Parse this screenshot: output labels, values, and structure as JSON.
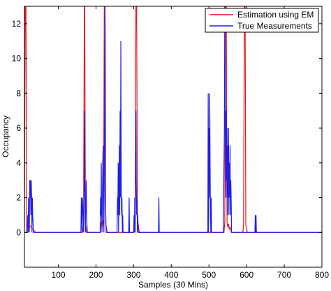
{
  "chart_data": {
    "type": "line",
    "title": "",
    "xlabel": "Samples (30 Mins)",
    "ylabel": "Occupancy",
    "xlim": [
      10,
      800
    ],
    "ylim": [
      -2,
      13
    ],
    "xticks": [
      100,
      200,
      300,
      400,
      500,
      600,
      700,
      800
    ],
    "yticks": [
      0,
      2,
      4,
      6,
      8,
      10,
      12
    ],
    "grid": false,
    "legend": "top-right",
    "series": [
      {
        "name": "Estimation using EM",
        "color": "#e8151b",
        "x": [
          10,
          12,
          14,
          16,
          19,
          24,
          40,
          100,
          164,
          167,
          169,
          170,
          172,
          175,
          180,
          212,
          214,
          216,
          218,
          220,
          222,
          224,
          226,
          230,
          300,
          304,
          306,
          308,
          310,
          312,
          315,
          320,
          360,
          540,
          542,
          544,
          546,
          548,
          550,
          552,
          554,
          556,
          560,
          590,
          592,
          594,
          596,
          598,
          602,
          800
        ],
        "y": [
          0,
          13,
          13,
          0,
          0,
          0.4,
          0,
          0,
          0,
          0.5,
          13,
          13,
          0.5,
          0,
          0,
          0,
          0.6,
          0.4,
          0.7,
          0.3,
          13,
          13,
          0.5,
          0,
          0,
          0.4,
          13,
          13,
          0.8,
          0.5,
          0,
          0,
          0,
          0,
          0.6,
          13,
          13,
          0.6,
          0.3,
          0.5,
          0.2,
          0.3,
          0,
          0,
          0.5,
          13,
          13,
          0.4,
          0,
          0
        ]
      },
      {
        "name": "True Measurements",
        "color": "#1f1fe8",
        "x": [
          10,
          17,
          19,
          20,
          21,
          22,
          23,
          24,
          25,
          26,
          27,
          28,
          29,
          30,
          31,
          32,
          34,
          160,
          161,
          163,
          164,
          166,
          167,
          168,
          169,
          170,
          171,
          172,
          173,
          174,
          175,
          177,
          210,
          211,
          212,
          213,
          214,
          215,
          216,
          217,
          218,
          219,
          220,
          221,
          222,
          223,
          224,
          225,
          226,
          227,
          229,
          256,
          257,
          258,
          259,
          260,
          261,
          262,
          263,
          264,
          265,
          266,
          267,
          268,
          269,
          270,
          271,
          272,
          274,
          287,
          288,
          289,
          290,
          300,
          301,
          302,
          303,
          304,
          305,
          306,
          307,
          308,
          309,
          310,
          311,
          312,
          314,
          366,
          367,
          368,
          369,
          497,
          498,
          499,
          500,
          501,
          502,
          503,
          504,
          505,
          506,
          507,
          509,
          538,
          539,
          540,
          541,
          542,
          543,
          544,
          545,
          546,
          547,
          548,
          549,
          550,
          551,
          552,
          553,
          554,
          555,
          556,
          557,
          558,
          559,
          560,
          562,
          622,
          623,
          624,
          625,
          626,
          627,
          629,
          800
        ],
        "y": [
          0,
          0,
          1,
          0,
          2,
          1,
          0,
          3,
          2,
          3,
          1,
          3,
          2,
          0,
          2,
          1,
          0,
          0,
          2,
          0,
          2,
          1,
          0,
          1,
          7,
          3,
          2,
          0,
          2,
          3,
          1,
          0,
          0,
          0,
          2,
          1,
          4,
          1,
          0,
          2,
          4,
          5,
          1,
          0,
          3,
          8,
          13,
          2,
          1,
          0,
          0,
          0,
          2,
          1,
          4,
          0,
          3,
          5,
          1,
          7,
          2,
          11,
          3,
          1,
          2,
          0,
          1,
          0,
          0,
          0,
          2,
          0,
          0,
          0,
          1,
          0,
          2,
          0,
          4,
          7,
          3,
          1,
          2,
          0,
          1,
          0,
          0,
          0,
          2,
          0,
          0,
          0,
          8,
          0,
          6,
          2,
          8,
          4,
          1,
          0,
          2,
          0,
          0,
          0,
          2,
          4,
          6,
          13,
          9,
          5,
          2,
          7,
          3,
          6,
          1,
          5,
          2,
          6,
          1,
          4,
          2,
          5,
          1,
          3,
          2,
          0,
          0,
          0,
          1,
          0,
          1,
          0,
          0,
          0,
          0
        ]
      }
    ]
  }
}
